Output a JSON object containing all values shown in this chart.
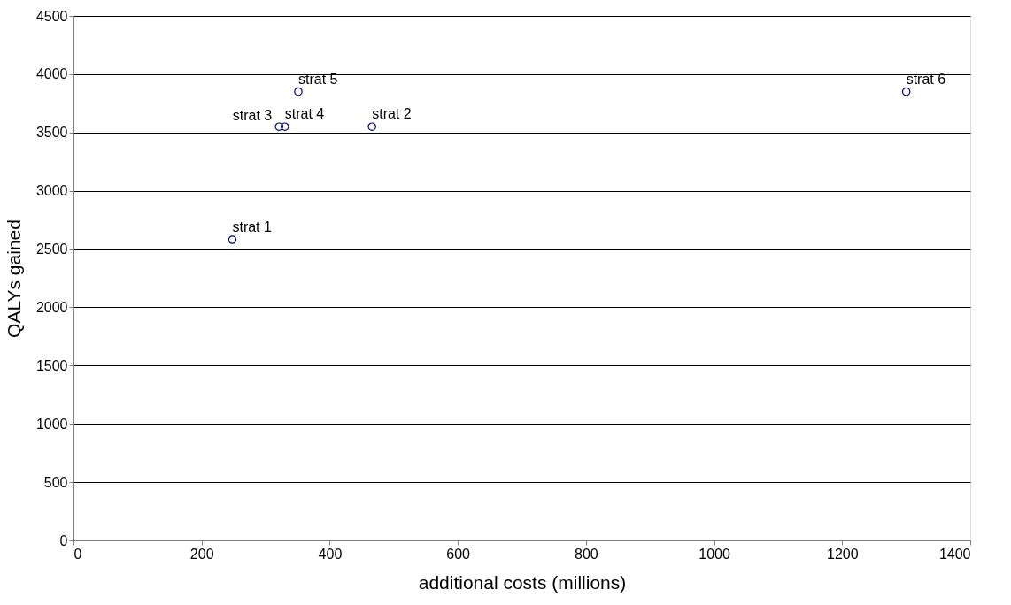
{
  "chart_data": {
    "type": "scatter",
    "xlabel": "additional costs (millions)",
    "ylabel": "QALYs gained",
    "x": [
      248,
      466,
      321,
      330,
      351,
      1300
    ],
    "series": [
      {
        "color": "#000080",
        "values": [
          2580,
          3550,
          3550,
          3550,
          3850,
          3850
        ]
      }
    ],
    "annotations": [
      {
        "text": "strat 1",
        "x": 248,
        "y": 2580
      },
      {
        "text": "strat 2",
        "x": 466,
        "y": 3550
      },
      {
        "text": "strat 3",
        "x": 321,
        "y": 3550
      },
      {
        "text": "strat 4",
        "x": 330,
        "y": 3550
      },
      {
        "text": "strat 5",
        "x": 351,
        "y": 3850
      },
      {
        "text": "strat 6",
        "x": 1300,
        "y": 3850
      }
    ],
    "xlim": [
      0,
      1400
    ],
    "xticks": [
      0,
      200,
      400,
      600,
      800,
      1000,
      1200,
      1400
    ],
    "ylim": [
      0,
      4500
    ],
    "yticks": [
      0,
      500,
      1000,
      1500,
      2000,
      2500,
      3000,
      3500,
      4000,
      4500
    ],
    "grid": "y",
    "marker": "circle"
  }
}
